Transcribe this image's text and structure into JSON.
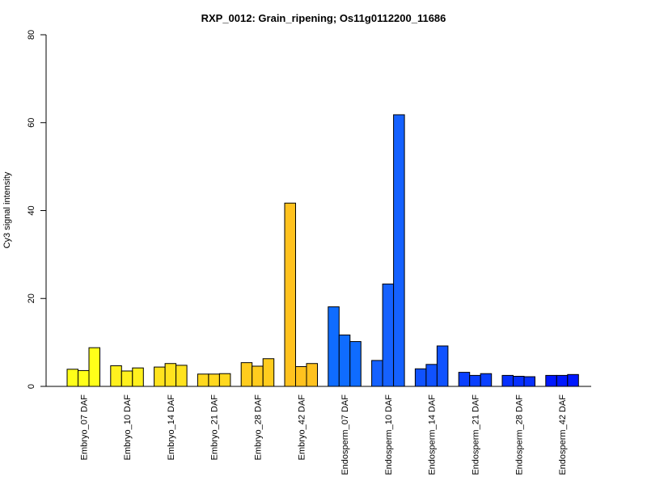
{
  "chart_data": {
    "type": "bar",
    "title": "RXP_0012: Grain_ripening; Os11g0112200_11686",
    "xlabel": "",
    "ylabel": "Cy3 signal intensity",
    "ylim": [
      0,
      80
    ],
    "yticks": [
      "0",
      "20",
      "40",
      "60",
      "80"
    ],
    "grid": false,
    "categories": [
      "Embryo_07 DAF",
      "Embryo_10 DAF",
      "Embryo_14 DAF",
      "Embryo_21 DAF",
      "Embryo_28 DAF",
      "Embryo_42 DAF",
      "Endosperm_07 DAF",
      "Endosperm_10 DAF",
      "Endosperm_14 DAF",
      "Endosperm_21 DAF",
      "Endosperm_28 DAF",
      "Endosperm_42 DAF"
    ],
    "colors": [
      "#ffff19",
      "#fff01e",
      "#ffe31e",
      "#ffd81e",
      "#ffcc1e",
      "#ffc21e",
      "#0f6cff",
      "#1561ff",
      "#1052ff",
      "#0a40ff",
      "#0630ff",
      "#0018ff"
    ],
    "groups": [
      [
        3.9,
        3.6,
        8.8
      ],
      [
        4.7,
        3.5,
        4.2
      ],
      [
        4.4,
        5.2,
        4.8
      ],
      [
        2.8,
        2.8,
        2.9
      ],
      [
        5.4,
        4.6,
        6.3
      ],
      [
        41.7,
        4.5,
        5.2
      ],
      [
        18.1,
        11.7,
        10.2
      ],
      [
        5.9,
        23.3,
        61.8
      ],
      [
        4.0,
        5.0,
        9.2
      ],
      [
        3.2,
        2.5,
        2.9
      ],
      [
        2.5,
        2.3,
        2.2
      ],
      [
        2.5,
        2.5,
        2.7
      ]
    ]
  }
}
